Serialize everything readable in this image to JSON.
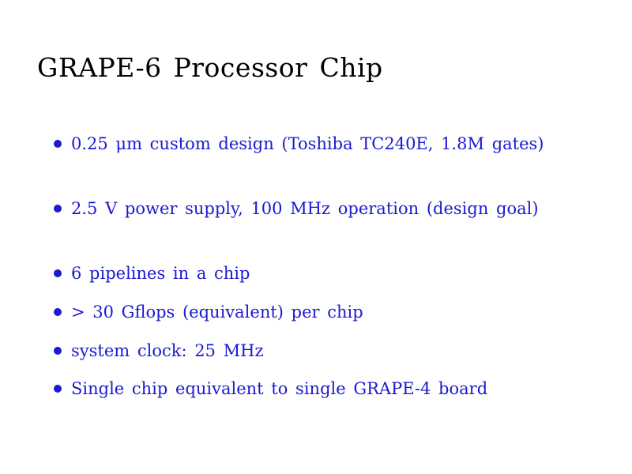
{
  "slide": {
    "title": "GRAPE-6 Processor Chip",
    "accent_color": "#1a1ad0",
    "bullets": [
      "0.25 μm custom design (Toshiba TC240E, 1.8M gates)",
      "2.5 V power supply, 100 MHz operation (design goal)",
      "6 pipelines in a chip",
      "> 30 Gflops (equivalent) per chip",
      "system clock: 25 MHz",
      "Single chip equivalent to single GRAPE-4 board"
    ]
  }
}
